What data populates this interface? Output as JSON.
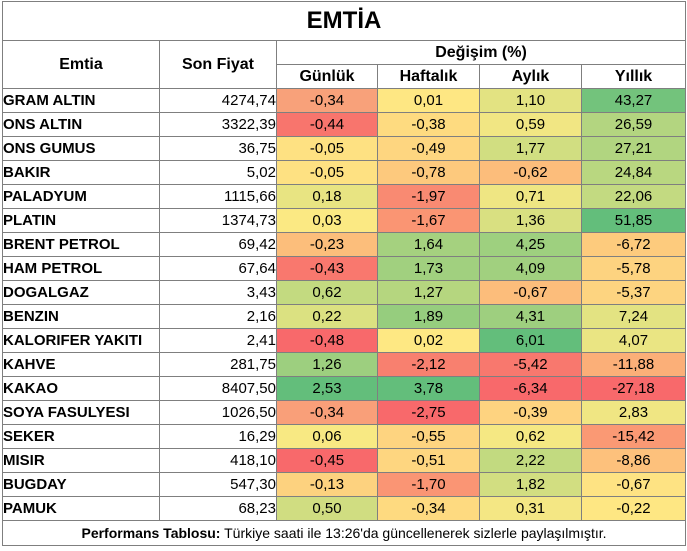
{
  "title": "EMTİA",
  "headers": {
    "commodity": "Emtia",
    "last_price": "Son Fiyat",
    "change_group": "Değişim (%)",
    "daily": "Günlük",
    "weekly": "Haftalık",
    "monthly": "Aylık",
    "yearly": "Yıllık"
  },
  "rows": [
    {
      "name": "GRAM ALTIN",
      "price": "4274,74",
      "d": "-0,34",
      "w": "0,01",
      "m": "1,10",
      "y": "43,27"
    },
    {
      "name": "ONS ALTIN",
      "price": "3322,39",
      "d": "-0,44",
      "w": "-0,38",
      "m": "0,59",
      "y": "26,59"
    },
    {
      "name": "ONS GUMUS",
      "price": "36,75",
      "d": "-0,05",
      "w": "-0,49",
      "m": "1,77",
      "y": "27,21"
    },
    {
      "name": "BAKIR",
      "price": "5,02",
      "d": "-0,05",
      "w": "-0,78",
      "m": "-0,62",
      "y": "24,84"
    },
    {
      "name": "PALADYUM",
      "price": "1115,66",
      "d": "0,18",
      "w": "-1,97",
      "m": "0,71",
      "y": "22,06"
    },
    {
      "name": "PLATIN",
      "price": "1374,73",
      "d": "0,03",
      "w": "-1,67",
      "m": "1,36",
      "y": "51,85"
    },
    {
      "name": "BRENT PETROL",
      "price": "69,42",
      "d": "-0,23",
      "w": "1,64",
      "m": "4,25",
      "y": "-6,72"
    },
    {
      "name": "HAM PETROL",
      "price": "67,64",
      "d": "-0,43",
      "w": "1,73",
      "m": "4,09",
      "y": "-5,78"
    },
    {
      "name": "DOGALGAZ",
      "price": "3,43",
      "d": "0,62",
      "w": "1,27",
      "m": "-0,67",
      "y": "-5,37"
    },
    {
      "name": "BENZIN",
      "price": "2,16",
      "d": "0,22",
      "w": "1,89",
      "m": "4,31",
      "y": "7,24"
    },
    {
      "name": "KALORIFER YAKITI",
      "price": "2,41",
      "d": "-0,48",
      "w": "0,02",
      "m": "6,01",
      "y": "4,07"
    },
    {
      "name": "KAHVE",
      "price": "281,75",
      "d": "1,26",
      "w": "-2,12",
      "m": "-5,42",
      "y": "-11,88"
    },
    {
      "name": "KAKAO",
      "price": "8407,50",
      "d": "2,53",
      "w": "3,78",
      "m": "-6,34",
      "y": "-27,18"
    },
    {
      "name": "SOYA FASULYESI",
      "price": "1026,50",
      "d": "-0,34",
      "w": "-2,75",
      "m": "-0,39",
      "y": "2,83"
    },
    {
      "name": "SEKER",
      "price": "16,29",
      "d": "0,06",
      "w": "-0,55",
      "m": "0,62",
      "y": "-15,42"
    },
    {
      "name": "MISIR",
      "price": "418,10",
      "d": "-0,45",
      "w": "-0,51",
      "m": "2,22",
      "y": "-8,86"
    },
    {
      "name": "BUGDAY",
      "price": "547,30",
      "d": "-0,13",
      "w": "-1,70",
      "m": "1,82",
      "y": "-0,67"
    },
    {
      "name": "PAMUK",
      "price": "68,23",
      "d": "0,50",
      "w": "-0,34",
      "m": "0,31",
      "y": "-0,22"
    }
  ],
  "colors": {
    "d": [
      "#f8a17a",
      "#f8756d",
      "#fee182",
      "#fee182",
      "#e8e482",
      "#fbe983",
      "#fcbe7b",
      "#f9786e",
      "#c3da80",
      "#dbe181",
      "#f8696b",
      "#9dcf7f",
      "#63be7b",
      "#f99f79",
      "#f8e983",
      "#f8696b",
      "#fdd27f",
      "#d0dd81"
    ],
    "w": [
      "#fee783",
      "#fedb80",
      "#fed680",
      "#fdc97d",
      "#f98a72",
      "#fa9573",
      "#a5d17f",
      "#a1d07f",
      "#b5d67f",
      "#96cd7e",
      "#fee883",
      "#f8806f",
      "#63be7b",
      "#f8696b",
      "#fed480",
      "#fed680",
      "#fa9574",
      "#feda80"
    ],
    "m": [
      "#e3e382",
      "#f1e683",
      "#d1de81",
      "#fcbd7b",
      "#efe683",
      "#d9e081",
      "#9ed07f",
      "#a1d07f",
      "#fcbd7b",
      "#9ecf7f",
      "#63be7b",
      "#f8786e",
      "#f8696b",
      "#fed380",
      "#f5e883",
      "#c2da80",
      "#d2de81",
      "#f4e784"
    ],
    "y": [
      "#73c37c",
      "#b3d580",
      "#b1d580",
      "#b9d780",
      "#c3da81",
      "#63be7b",
      "#fdcb7d",
      "#fdd380",
      "#fdd480",
      "#e3e382",
      "#eae583",
      "#fbaf78",
      "#f8696b",
      "#f0e683",
      "#fa9974",
      "#fdc17c",
      "#fee383",
      "#fee783"
    ]
  },
  "footer": {
    "label": "Performans Tablosu:",
    "text": " Türkiye saati ile 13:26'da güncellenerek sizlerle paylaşılmıştır."
  }
}
